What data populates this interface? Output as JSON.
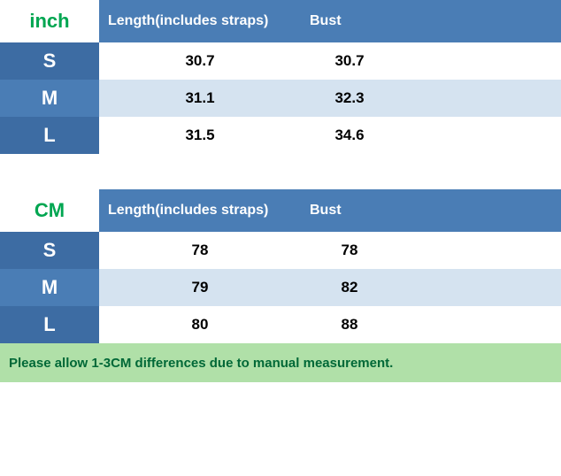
{
  "colors": {
    "header_blue": "#4a7db5",
    "size_blue_dark": "#3d6ca3",
    "row_alt_blue": "#d5e3f0",
    "row_white": "#ffffff",
    "green_text": "#00a651",
    "note_bg": "#b0e0a8",
    "note_text": "#006837"
  },
  "tables": [
    {
      "unit": "inch",
      "columns": [
        "Length(includes straps)",
        "Bust"
      ],
      "rows": [
        {
          "size": "S",
          "length": "30.7",
          "bust": "30.7"
        },
        {
          "size": "M",
          "length": "31.1",
          "bust": "32.3"
        },
        {
          "size": "L",
          "length": "31.5",
          "bust": "34.6"
        }
      ]
    },
    {
      "unit": "CM",
      "columns": [
        "Length(includes straps)",
        "Bust"
      ],
      "rows": [
        {
          "size": "S",
          "length": "78",
          "bust": "78"
        },
        {
          "size": "M",
          "length": "79",
          "bust": "82"
        },
        {
          "size": "L",
          "length": "80",
          "bust": "88"
        }
      ]
    }
  ],
  "note": "Please allow 1-3CM differences due to manual measurement."
}
